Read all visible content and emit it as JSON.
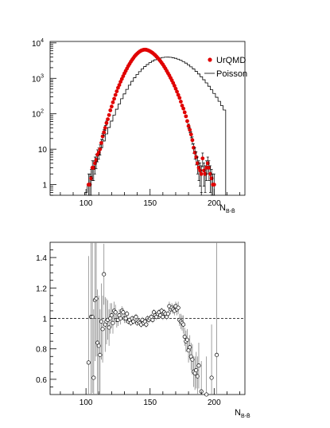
{
  "chart_data": [
    {
      "type": "scatter",
      "xlabel": "N",
      "xlabel_sub": "B-B̄",
      "xlim": [
        72,
        224
      ],
      "ylim": [
        0.5,
        11000
      ],
      "yscale": "log",
      "x_ticks": [
        "100",
        "150",
        "200"
      ],
      "y_ticks": [
        {
          "base": "1",
          "exp": ""
        },
        {
          "base": "10",
          "exp": ""
        },
        {
          "base": "10",
          "exp": "2"
        },
        {
          "base": "10",
          "exp": "3"
        },
        {
          "base": "10",
          "exp": "4"
        }
      ],
      "legend_position": "top-right",
      "series": [
        {
          "name": "UrQMD",
          "style": "markers-with-errorbars",
          "color": "#e00000",
          "x": [
            102,
            103,
            104,
            105,
            106,
            107,
            108,
            109,
            110,
            111,
            112,
            113,
            114,
            115,
            116,
            117,
            118,
            119,
            120,
            121,
            122,
            123,
            124,
            125,
            126,
            127,
            128,
            129,
            130,
            131,
            132,
            133,
            134,
            135,
            136,
            137,
            138,
            139,
            140,
            141,
            142,
            143,
            144,
            145,
            146,
            147,
            148,
            149,
            150,
            151,
            152,
            153,
            154,
            155,
            156,
            157,
            158,
            159,
            160,
            161,
            162,
            163,
            164,
            165,
            166,
            167,
            168,
            169,
            170,
            171,
            172,
            173,
            174,
            175,
            176,
            177,
            178,
            179,
            180,
            181,
            182,
            183,
            184,
            185,
            186,
            187,
            188,
            189,
            190,
            191,
            192,
            193,
            194,
            195,
            196,
            197,
            198,
            199,
            200
          ],
          "y": [
            1,
            1,
            1.5,
            3,
            3,
            4,
            5,
            7,
            8,
            10,
            15,
            23,
            30,
            40,
            55,
            70,
            92,
            125,
            160,
            210,
            265,
            340,
            430,
            540,
            650,
            800,
            960,
            1150,
            1380,
            1620,
            1900,
            2230,
            2560,
            2950,
            3330,
            3750,
            4200,
            4600,
            5000,
            5400,
            5750,
            6050,
            6250,
            6400,
            6450,
            6400,
            6250,
            6050,
            5800,
            5500,
            5200,
            4850,
            4500,
            4130,
            3770,
            3420,
            3080,
            2750,
            2450,
            2150,
            1880,
            1620,
            1400,
            1210,
            1030,
            880,
            740,
            620,
            510,
            420,
            340,
            280,
            220,
            170,
            140,
            110,
            85,
            62,
            45,
            35,
            26,
            18,
            11,
            8,
            6,
            4,
            3,
            2.5,
            2,
            5.5,
            2.5,
            2,
            3,
            4,
            3,
            2,
            1.5,
            1,
            1
          ],
          "yerr": [
            1,
            1,
            1.2,
            1.7,
            1.7,
            2,
            2.2,
            2.6,
            2.8,
            3.2,
            3.9,
            4.8,
            5.5,
            6.3,
            7.4,
            8.4,
            9.6,
            11,
            12.6,
            14.5,
            16.3,
            18.4,
            20.7,
            23.2,
            25.5,
            28.3,
            31,
            33.9,
            37.1,
            40.2,
            43.6,
            47.2,
            50.6,
            54.3,
            57.7,
            61.2,
            64.8,
            67.8,
            70.7,
            73.5,
            75.8,
            77.8,
            79,
            80,
            80.3,
            80,
            79,
            77.8,
            76.2,
            74.2,
            72.1,
            69.6,
            67.1,
            64.3,
            61.4,
            58.5,
            55.5,
            52.4,
            49.5,
            46.4,
            43.4,
            40.2,
            37.4,
            34.8,
            32.1,
            29.7,
            27.2,
            24.9,
            22.6,
            20.5,
            18.4,
            16.7,
            14.8,
            13,
            11.8,
            10.5,
            9.2,
            7.9,
            6.7,
            5.9,
            5.1,
            4.2,
            3.3,
            2.8,
            2.4,
            2,
            1.7,
            1.6,
            1.4,
            2.3,
            1.6,
            1.4,
            1.7,
            2,
            1.7,
            1.4,
            1.2,
            1,
            1
          ]
        },
        {
          "name": "Poisson",
          "style": "histogram-step",
          "color": "#000000",
          "x": [
            100,
            102,
            104,
            106,
            108,
            110,
            112,
            114,
            116,
            118,
            120,
            122,
            124,
            126,
            128,
            130,
            132,
            134,
            136,
            138,
            140,
            142,
            144,
            146,
            148,
            150,
            152,
            154,
            156,
            158,
            160,
            162,
            164,
            166,
            168,
            170,
            172,
            174,
            176,
            178,
            180,
            182,
            184,
            186,
            188,
            190,
            192,
            194,
            196,
            198,
            200,
            202,
            204,
            206,
            208
          ],
          "y": [
            0.6,
            1,
            1.7,
            2.7,
            4.4,
            7,
            11,
            17,
            27,
            41,
            62,
            92,
            134,
            190,
            266,
            364,
            488,
            640,
            823,
            1037,
            1280,
            1549,
            1840,
            2146,
            2459,
            2768,
            3063,
            3330,
            3561,
            3746,
            3879,
            3954,
            3968,
            3922,
            3820,
            3667,
            3468,
            3233,
            2971,
            2691,
            2402,
            2114,
            1835,
            1572,
            1328,
            1108,
            913,
            744,
            599,
            476,
            375,
            292,
            224,
            170,
            128
          ]
        }
      ]
    },
    {
      "type": "scatter",
      "xlabel": "N",
      "xlabel_sub": "B-B̄",
      "xlim": [
        72,
        224
      ],
      "ylim": [
        0.5,
        1.5
      ],
      "yscale": "linear",
      "x_ticks": [
        "100",
        "150",
        "200"
      ],
      "y_ticks": [
        "0.6",
        "0.8",
        "1",
        "1.2",
        "1.4"
      ],
      "reference_line": 1,
      "series": [
        {
          "name": "",
          "style": "open-markers-with-errorbars",
          "color": "#000000",
          "x": [
            102,
            104,
            105,
            106,
            107,
            108,
            109,
            110,
            111,
            112,
            113,
            114,
            115,
            116,
            117,
            118,
            119,
            120,
            121,
            122,
            123,
            124,
            125,
            126,
            127,
            128,
            129,
            130,
            131,
            132,
            133,
            134,
            135,
            136,
            137,
            138,
            139,
            140,
            141,
            142,
            143,
            144,
            145,
            146,
            147,
            148,
            149,
            150,
            151,
            152,
            153,
            154,
            155,
            156,
            157,
            158,
            159,
            160,
            161,
            162,
            163,
            164,
            165,
            166,
            167,
            168,
            169,
            170,
            171,
            172,
            173,
            174,
            175,
            176,
            177,
            178,
            179,
            180,
            181,
            182,
            183,
            184,
            185,
            186,
            187,
            188,
            190,
            194,
            198,
            202
          ],
          "y": [
            0.71,
            1.01,
            1.01,
            0.61,
            1.12,
            1.13,
            0.84,
            0.82,
            0.76,
            0.98,
            0.93,
            1.29,
            0.96,
            0.98,
            0.99,
            0.94,
            1.0,
            1.02,
            0.97,
            1.05,
            1.04,
            0.99,
            0.99,
            1.02,
            1.0,
            1.05,
            1.04,
            1.0,
            1.0,
            1.03,
            0.98,
            0.99,
            0.97,
            1.0,
            0.98,
            1.0,
            1.01,
            0.97,
            0.98,
            0.97,
            0.96,
            0.99,
            0.97,
            0.98,
            0.96,
            1.0,
            0.99,
            1.0,
            1.01,
            0.99,
            1.04,
            1.02,
            1.01,
            1.03,
            1.04,
            1.02,
            1.05,
            1.01,
            1.04,
            1.03,
            1.01,
            1.03,
            1.08,
            1.06,
            1.07,
            1.06,
            1.05,
            1.08,
            1.06,
            1.07,
            0.99,
            0.98,
            0.97,
            0.96,
            0.88,
            0.85,
            0.86,
            0.79,
            0.81,
            0.75,
            0.73,
            0.65,
            0.64,
            0.66,
            0.62,
            0.69,
            0.52,
            0.5,
            0.61,
            0.76
          ],
          "yerr": [
            0.7,
            0.55,
            0.5,
            0.45,
            0.4,
            0.38,
            0.35,
            0.33,
            0.3,
            0.25,
            0.22,
            0.2,
            0.18,
            0.15,
            0.13,
            0.12,
            0.1,
            0.08,
            0.07,
            0.06,
            0.05,
            0.05,
            0.04,
            0.04,
            0.04,
            0.03,
            0.03,
            0.03,
            0.03,
            0.02,
            0.02,
            0.02,
            0.02,
            0.02,
            0.02,
            0.02,
            0.02,
            0.02,
            0.02,
            0.02,
            0.02,
            0.02,
            0.02,
            0.02,
            0.02,
            0.02,
            0.02,
            0.02,
            0.02,
            0.02,
            0.02,
            0.02,
            0.02,
            0.02,
            0.02,
            0.02,
            0.02,
            0.02,
            0.02,
            0.02,
            0.02,
            0.02,
            0.03,
            0.03,
            0.03,
            0.03,
            0.03,
            0.03,
            0.04,
            0.04,
            0.04,
            0.05,
            0.05,
            0.06,
            0.06,
            0.07,
            0.07,
            0.08,
            0.08,
            0.09,
            0.1,
            0.1,
            0.11,
            0.12,
            0.13,
            0.15,
            0.2,
            0.25,
            0.35,
            0.8
          ]
        }
      ]
    }
  ]
}
